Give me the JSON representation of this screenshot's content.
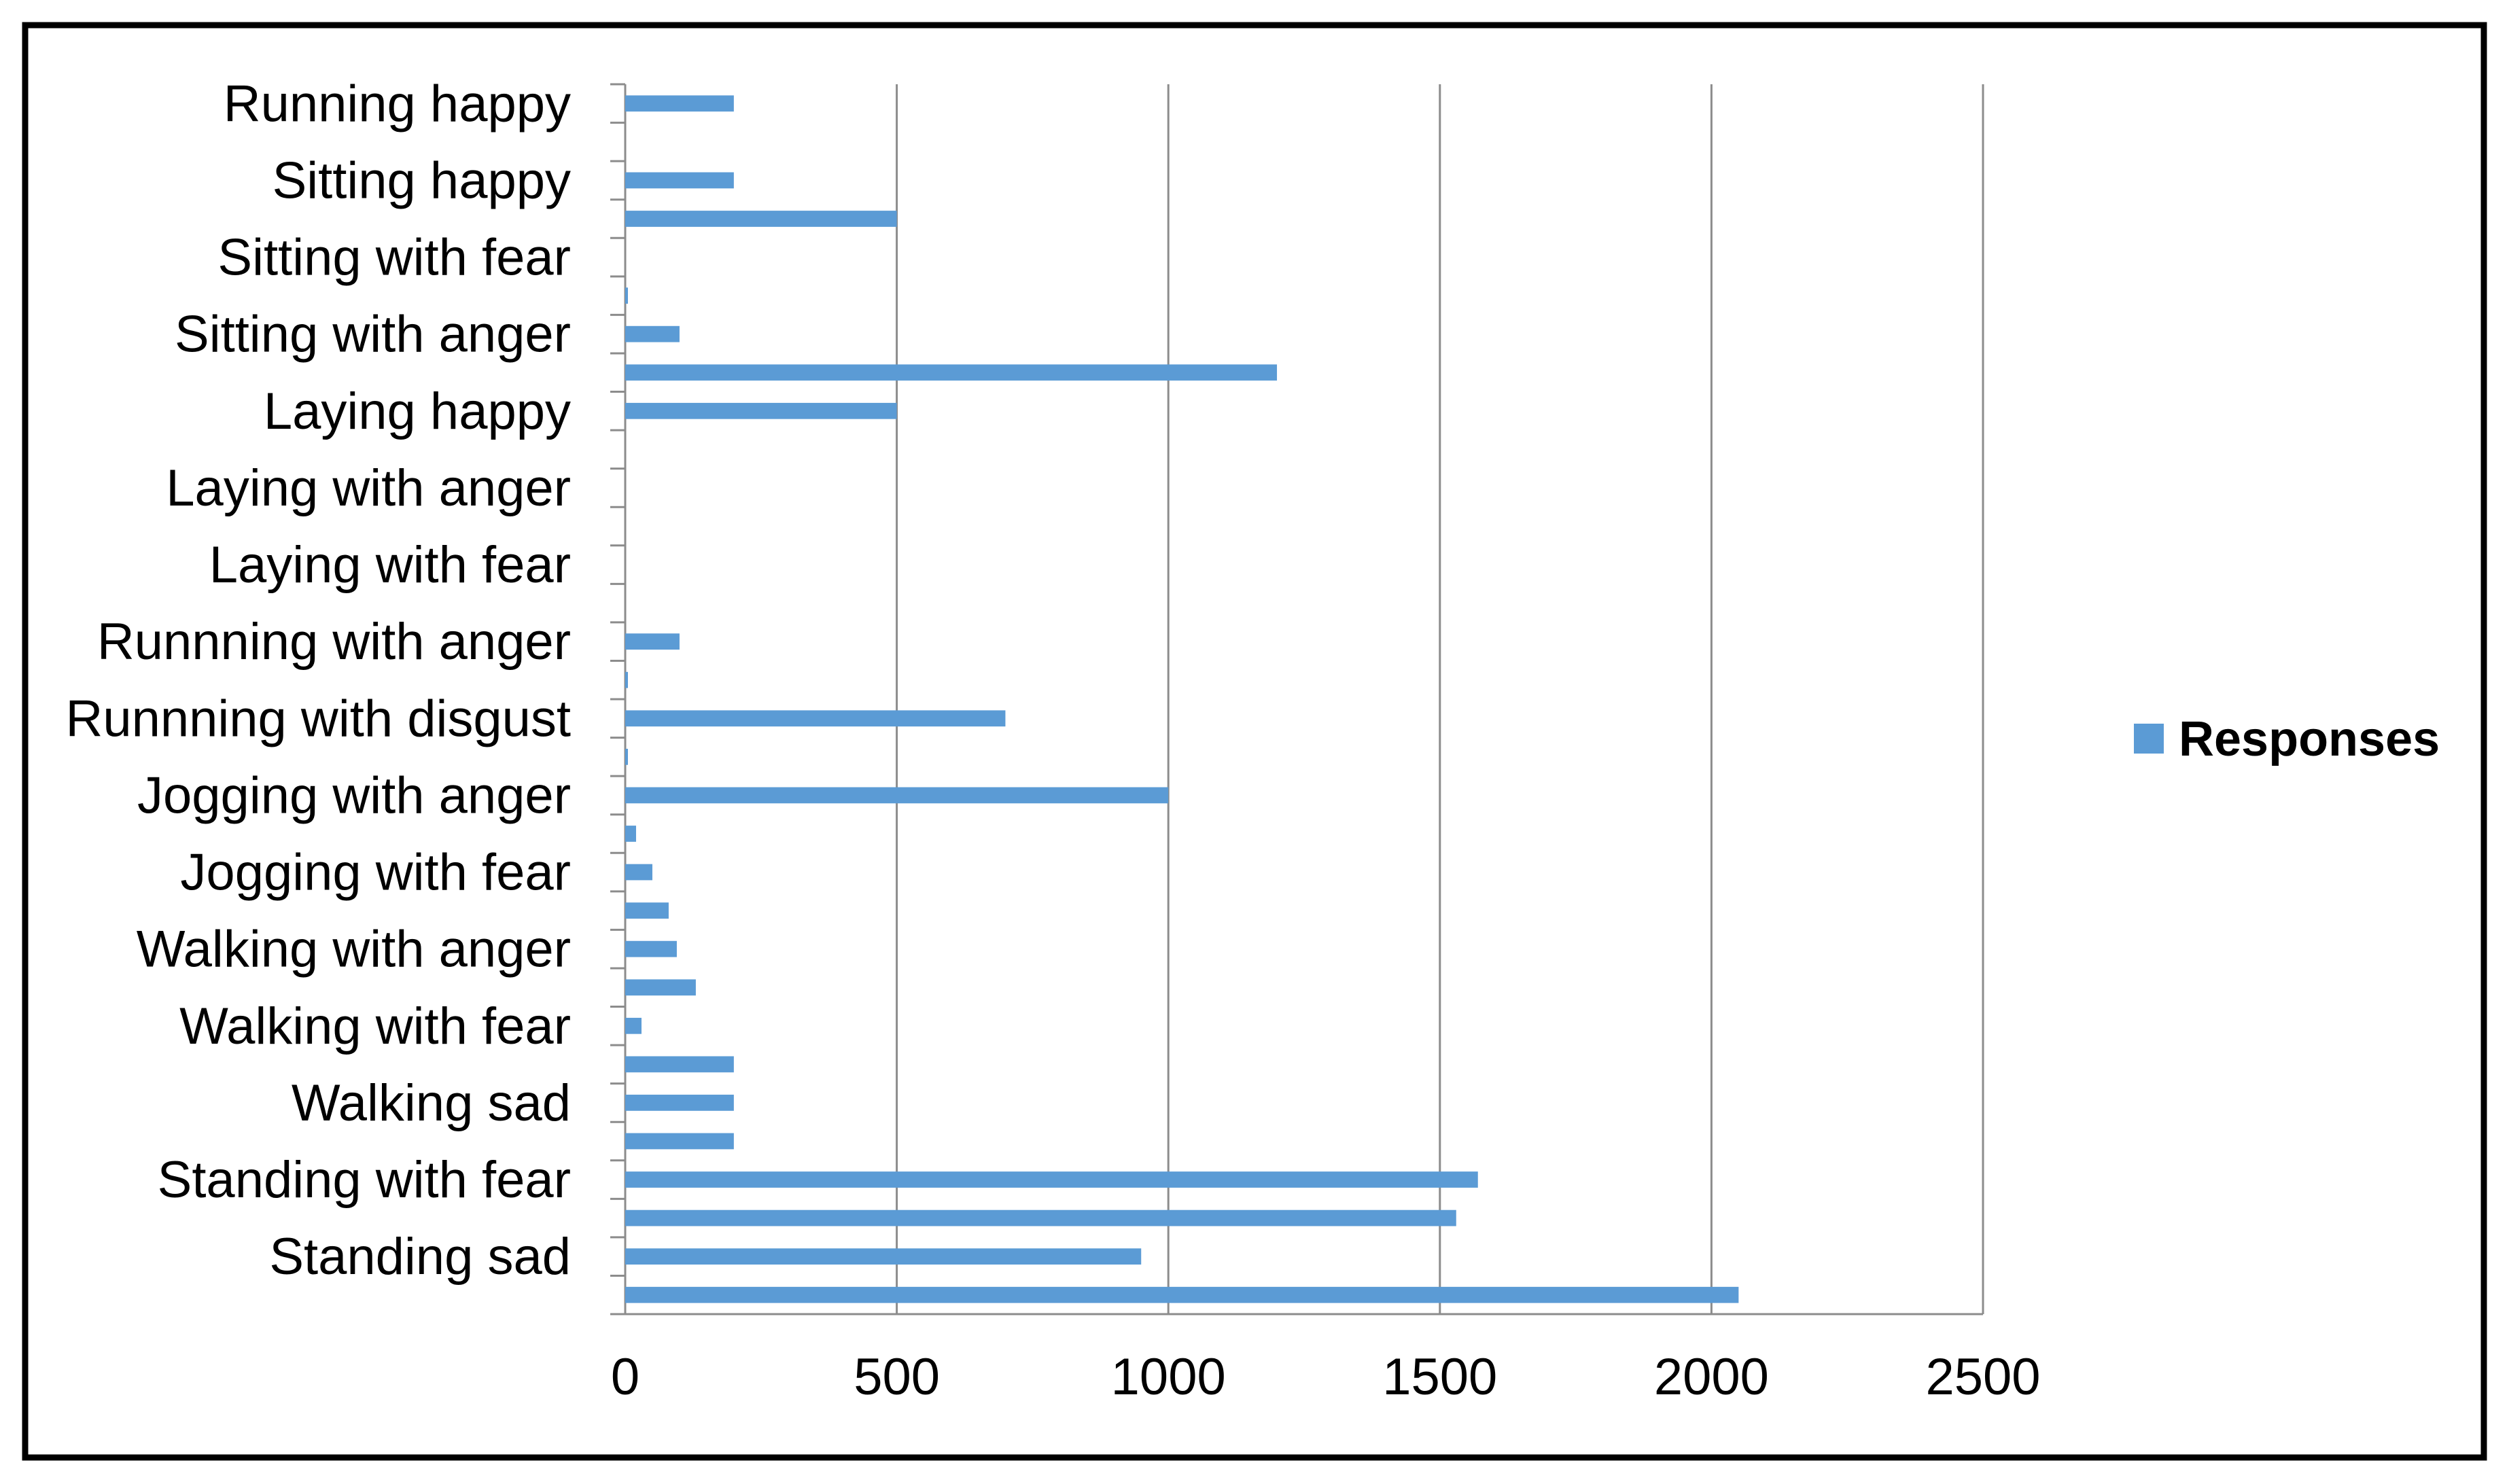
{
  "chart_data": {
    "type": "bar",
    "orientation": "horizontal",
    "title": "",
    "xlabel": "",
    "ylabel": "",
    "xlim": [
      0,
      2500
    ],
    "x_ticks": [
      0,
      500,
      1000,
      1500,
      2000,
      2500
    ],
    "grid": "vertical",
    "legend_position": "right",
    "bar_color": "#5b9bd5",
    "category_labels_shown": [
      "Running happy",
      "Sitting happy",
      "Sitting with fear",
      "Sitting with anger",
      "Laying happy",
      "Laying with anger",
      "Laying with fear",
      "Runnning with anger",
      "Runnning with disgust",
      "Jogging with anger",
      "Jogging with fear",
      "Walking with anger",
      "Walking with fear",
      "Walking sad",
      "Standing with fear",
      "Standing sad"
    ],
    "series": [
      {
        "name": "Responses",
        "values_top_to_bottom": [
          200,
          0,
          200,
          500,
          0,
          5,
          100,
          1200,
          500,
          0,
          0,
          0,
          0,
          0,
          100,
          5,
          700,
          5,
          1000,
          20,
          50,
          80,
          95,
          130,
          30,
          200,
          200,
          200,
          1570,
          1530,
          950,
          2050
        ]
      }
    ]
  }
}
